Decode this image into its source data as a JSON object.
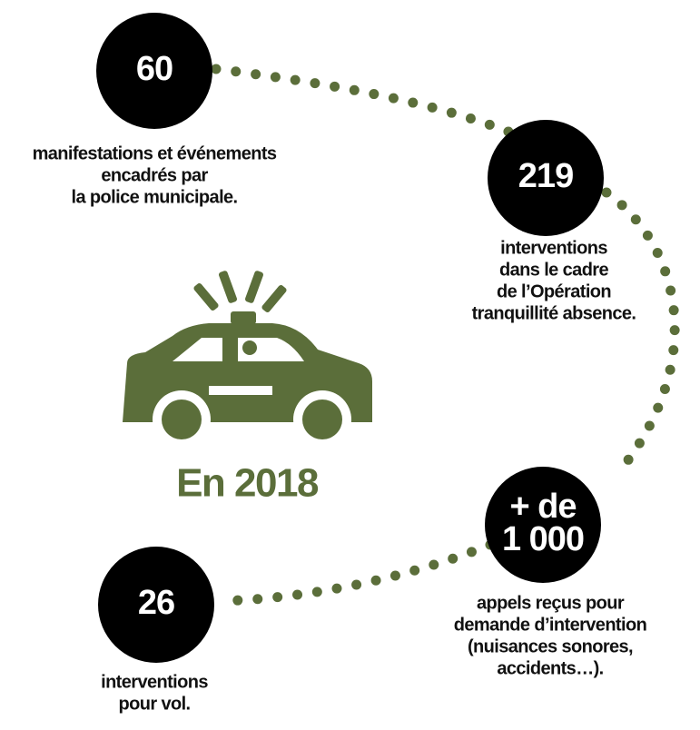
{
  "center_label": "En 2018",
  "nodes": [
    {
      "value": [
        "60"
      ],
      "label": [
        "manifestations et événements",
        "encadrés par",
        "la police municipale."
      ]
    },
    {
      "value": [
        "219"
      ],
      "label": [
        "interventions",
        "dans le cadre",
        "de l’Opération",
        "tranquillité absence."
      ]
    },
    {
      "value": [
        "+ de",
        "1 000"
      ],
      "label": [
        "appels reçus pour",
        "demande d’intervention",
        "(nuisances sonores,",
        "accidents…)."
      ]
    },
    {
      "value": [
        "26"
      ],
      "label": [
        "interventions",
        "pour vol."
      ]
    }
  ]
}
